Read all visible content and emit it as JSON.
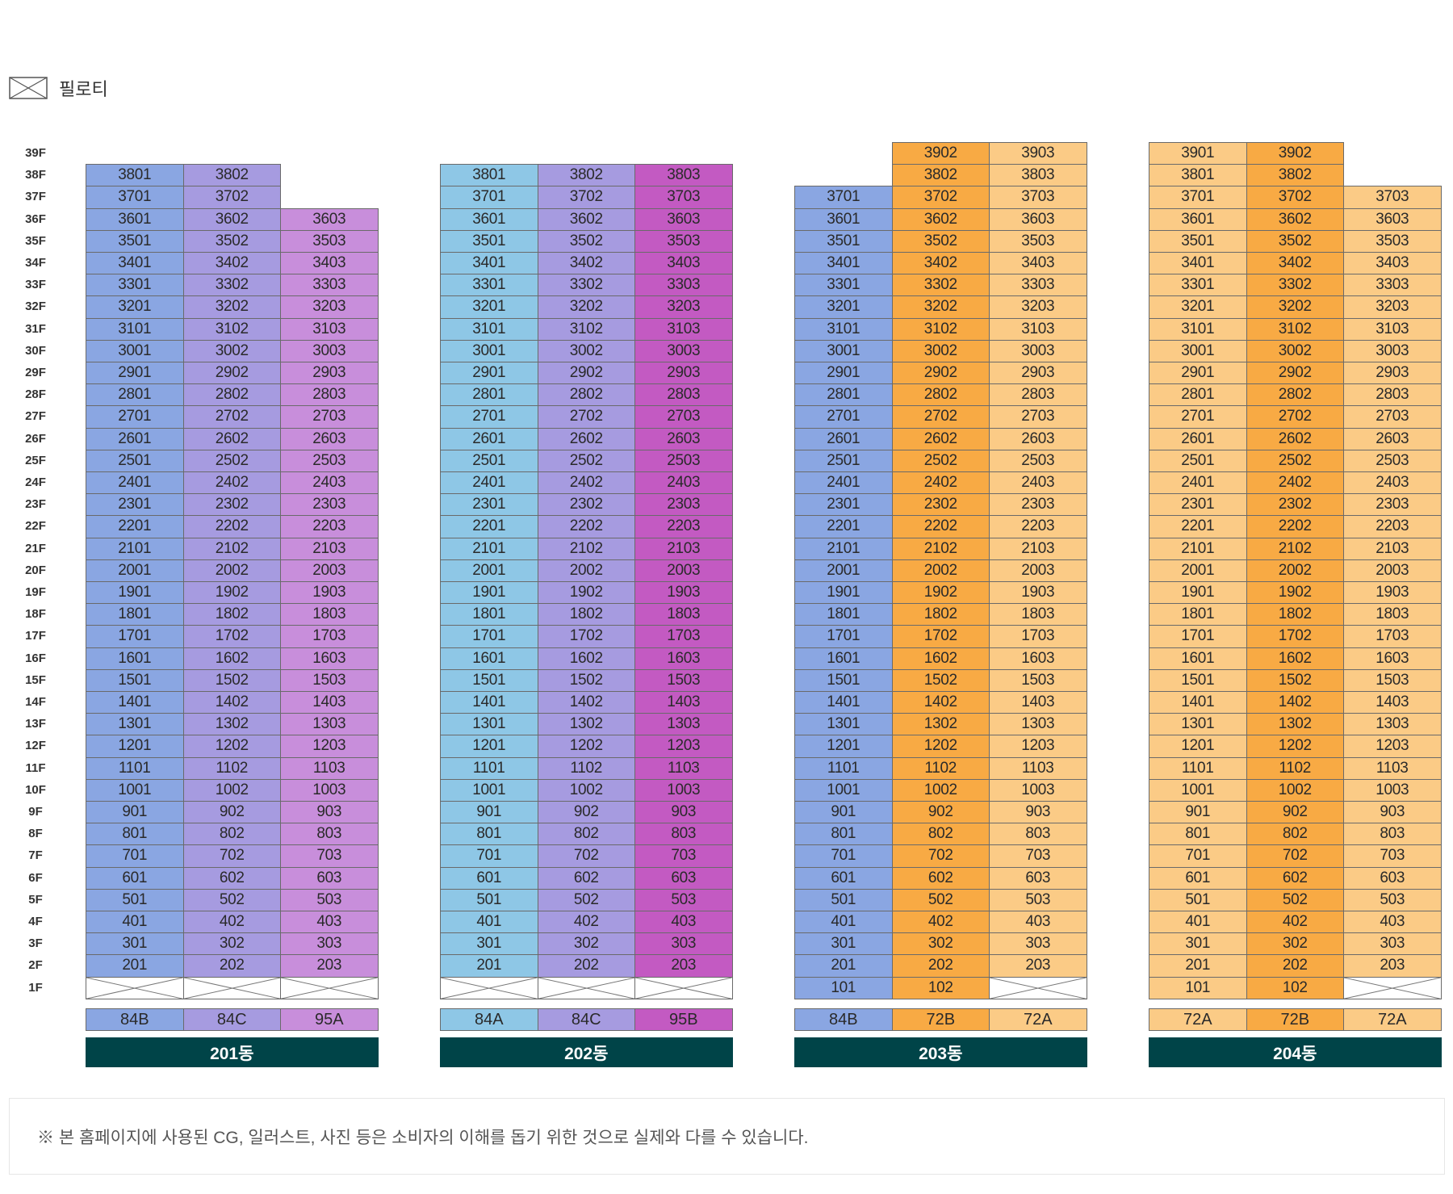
{
  "legend": {
    "icon": "piloti-icon",
    "label": "필로티"
  },
  "floors": [
    "39F",
    "38F",
    "37F",
    "36F",
    "35F",
    "34F",
    "33F",
    "32F",
    "31F",
    "30F",
    "29F",
    "28F",
    "27F",
    "26F",
    "25F",
    "24F",
    "23F",
    "22F",
    "21F",
    "20F",
    "19F",
    "18F",
    "17F",
    "16F",
    "15F",
    "14F",
    "13F",
    "12F",
    "11F",
    "10F",
    "9F",
    "8F",
    "7F",
    "6F",
    "5F",
    "4F",
    "3F",
    "2F",
    "1F"
  ],
  "colors": {
    "84A": "#8ec7e6",
    "84B": "#8aa6e2",
    "84C": "#a69be0",
    "95A": "#c88edb",
    "95B": "#c35ac2",
    "72A": "#fbcb86",
    "72B": "#f8aa44",
    "header": "#004448",
    "piloti": "#ffffff"
  },
  "buildings": [
    {
      "name": "201동",
      "columns": [
        {
          "type": "84B",
          "unit": "01",
          "top_floor": 38,
          "piloti_floors": [
            1
          ]
        },
        {
          "type": "84C",
          "unit": "02",
          "top_floor": 38,
          "piloti_floors": [
            1
          ]
        },
        {
          "type": "95A",
          "unit": "03",
          "top_floor": 36,
          "piloti_floors": [
            1
          ]
        }
      ]
    },
    {
      "name": "202동",
      "columns": [
        {
          "type": "84A",
          "unit": "01",
          "top_floor": 38,
          "piloti_floors": [
            1
          ]
        },
        {
          "type": "84C",
          "unit": "02",
          "top_floor": 38,
          "piloti_floors": [
            1
          ]
        },
        {
          "type": "95B",
          "unit": "03",
          "top_floor": 38,
          "piloti_floors": [
            1
          ]
        }
      ]
    },
    {
      "name": "203동",
      "columns": [
        {
          "type": "84B",
          "unit": "01",
          "top_floor": 37,
          "piloti_floors": []
        },
        {
          "type": "72B",
          "unit": "02",
          "top_floor": 39,
          "piloti_floors": []
        },
        {
          "type": "72A",
          "unit": "03",
          "top_floor": 39,
          "piloti_floors": [
            1
          ]
        }
      ]
    },
    {
      "name": "204동",
      "columns": [
        {
          "type": "72A",
          "unit": "01",
          "top_floor": 39,
          "piloti_floors": []
        },
        {
          "type": "72B",
          "unit": "02",
          "top_floor": 39,
          "piloti_floors": []
        },
        {
          "type": "72A",
          "unit": "03",
          "top_floor": 37,
          "piloti_floors": [
            1
          ]
        }
      ]
    }
  ],
  "footer_note": "※ 본 홈페이지에 사용된 CG, 일러스트, 사진 등은 소비자의 이해를 돕기 위한 것으로 실제와 다를 수 있습니다."
}
